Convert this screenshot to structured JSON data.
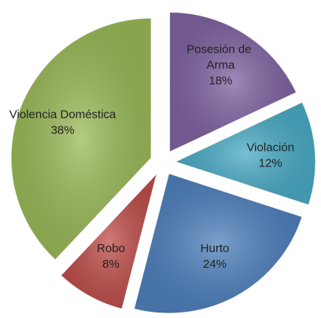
{
  "chart_data": {
    "type": "pie",
    "categories": [
      "Posesión de Arma",
      "Violación",
      "Hurto",
      "Robo",
      "Violencia Doméstica"
    ],
    "values": [
      18,
      12,
      24,
      8,
      38
    ],
    "value_labels": [
      "18%",
      "12%",
      "24%",
      "8%",
      "38%"
    ],
    "colors": [
      "#8064a2",
      "#4bacc6",
      "#4f81bd",
      "#c0504d",
      "#9bbb59"
    ]
  }
}
